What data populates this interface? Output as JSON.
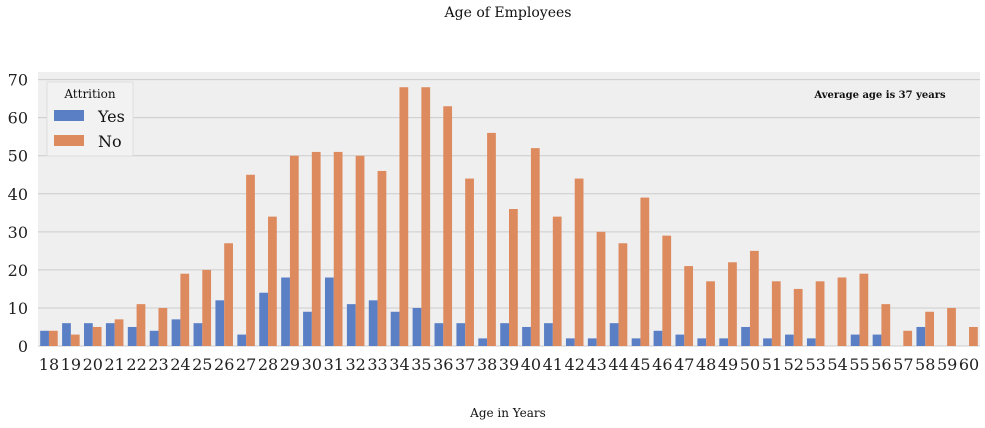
{
  "chart_data": {
    "type": "bar",
    "title": "Age of Employees",
    "xlabel": "Age in Years",
    "ylabel": "",
    "ylim": [
      0,
      72
    ],
    "yticks": [
      0,
      10,
      20,
      30,
      40,
      50,
      60,
      70
    ],
    "grid": true,
    "annotation": "Average age is 37 years",
    "legend": {
      "title": "Attrition",
      "placement": "top-left"
    },
    "categories": [
      "18",
      "19",
      "20",
      "21",
      "22",
      "23",
      "24",
      "25",
      "26",
      "27",
      "28",
      "29",
      "30",
      "31",
      "32",
      "33",
      "34",
      "35",
      "36",
      "37",
      "38",
      "39",
      "40",
      "41",
      "42",
      "43",
      "44",
      "45",
      "46",
      "47",
      "48",
      "49",
      "50",
      "51",
      "52",
      "53",
      "54",
      "55",
      "56",
      "57",
      "58",
      "59",
      "60"
    ],
    "series": [
      {
        "name": "Yes",
        "color": "#5b7fc5",
        "values": [
          4,
          6,
          6,
          6,
          5,
          4,
          7,
          6,
          12,
          3,
          14,
          18,
          9,
          18,
          11,
          12,
          9,
          10,
          6,
          6,
          2,
          6,
          5,
          6,
          2,
          2,
          6,
          2,
          4,
          3,
          2,
          2,
          5,
          2,
          3,
          2,
          0,
          3,
          3,
          0,
          5,
          0,
          0
        ]
      },
      {
        "name": "No",
        "color": "#dd8a5e",
        "values": [
          4,
          3,
          5,
          7,
          11,
          10,
          19,
          20,
          27,
          45,
          34,
          50,
          51,
          51,
          50,
          46,
          68,
          68,
          63,
          44,
          56,
          36,
          52,
          34,
          44,
          30,
          27,
          39,
          29,
          21,
          17,
          22,
          25,
          17,
          15,
          17,
          18,
          19,
          11,
          4,
          9,
          10,
          5
        ]
      }
    ]
  }
}
